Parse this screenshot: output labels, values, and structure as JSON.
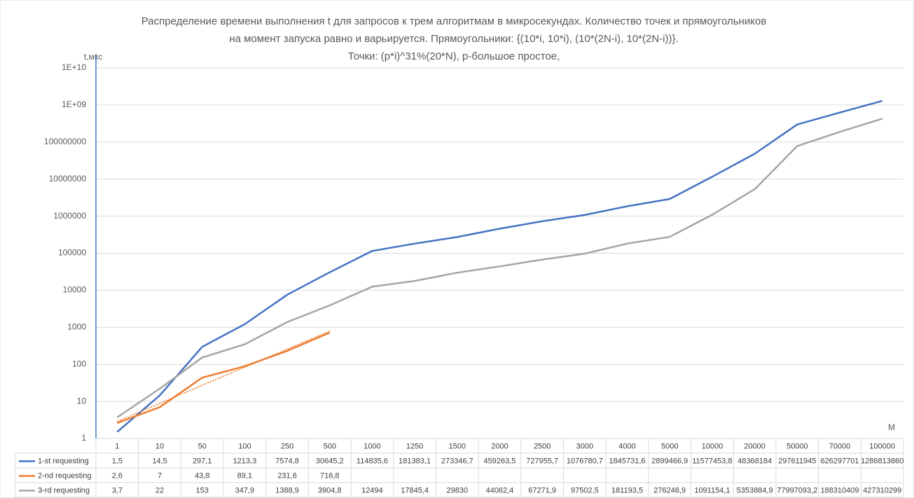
{
  "chart_data": {
    "type": "line",
    "title": [
      "Распределение времени выполнения t для запросов к трем алгоритмам в микросекундах. Количество точек и прямоугольников",
      "на момент запуска равно и варьируется. Прямоугольники: {(10*i, 10*i), (10*(2N-i), 10*(2N-i))}.",
      "Точки: (p*i)^31%(20*N), p-большое простое,"
    ],
    "y_label": "t,мкс",
    "x_label": "M",
    "log_y": true,
    "grid": true,
    "categories": [
      "1",
      "10",
      "50",
      "100",
      "250",
      "500",
      "1000",
      "1250",
      "1500",
      "2000",
      "2500",
      "3000",
      "4000",
      "5000",
      "10000",
      "20000",
      "50000",
      "70000",
      "100000"
    ],
    "series": [
      {
        "name": "1-st requesting",
        "color": "#4472c4",
        "values": [
          1.5,
          14.5,
          297.1,
          1213.3,
          7574.8,
          30645.2,
          114835.6,
          181383.1,
          273346.7,
          459263.5,
          727955.7,
          1076780.7,
          1845731.6,
          2899466.9,
          11577453.8,
          48368184,
          297611945,
          626297701,
          1286813860
        ],
        "value_labels": [
          "1,5",
          "14,5",
          "297,1",
          "1213,3",
          "7574,8",
          "30645,2",
          "114835,6",
          "181383,1",
          "273346,7",
          "459263,5",
          "727955,7",
          "1076780,7",
          "1845731,6",
          "2899466,9",
          "11577453,8",
          "48368184",
          "297611945",
          "626297701",
          "1286813860"
        ]
      },
      {
        "name": "2-nd requesting",
        "color": "#ed7d31",
        "trendline": "exponential",
        "values": [
          2.6,
          7,
          43.8,
          89.1,
          231.6,
          716.8,
          null,
          null,
          null,
          null,
          null,
          null,
          null,
          null,
          null,
          null,
          null,
          null,
          null
        ],
        "value_labels": [
          "2,6",
          "7",
          "43,8",
          "89,1",
          "231,6",
          "716,8",
          null,
          null,
          null,
          null,
          null,
          null,
          null,
          null,
          null,
          null,
          null,
          null,
          null
        ]
      },
      {
        "name": "3-rd requesting",
        "color": "#a5a5a5",
        "values": [
          3.7,
          22,
          153,
          347.9,
          1388.9,
          3904.8,
          12494,
          17845.4,
          29830,
          44062.4,
          67271.9,
          97502.5,
          181193.5,
          276246.9,
          1091154.1,
          5353884.9,
          77997093.2,
          188310409,
          427310299
        ],
        "value_labels": [
          "3,7",
          "22",
          "153",
          "347,9",
          "1388,9",
          "3904,8",
          "12494",
          "17845,4",
          "29830",
          "44062,4",
          "67271,9",
          "97502,5",
          "181193,5",
          "276246,9",
          "1091154,1",
          "5353884,9",
          "77997093,2",
          "188310409",
          "427310299"
        ]
      }
    ],
    "ylim": [
      1,
      10000000000
    ],
    "yticks": [
      1,
      10,
      100,
      1000,
      10000,
      100000,
      1000000,
      10000000,
      100000000,
      {
        "value": 1000000000,
        "label": "1E+09"
      },
      {
        "value": 10000000000,
        "label": "1E+10"
      }
    ]
  }
}
